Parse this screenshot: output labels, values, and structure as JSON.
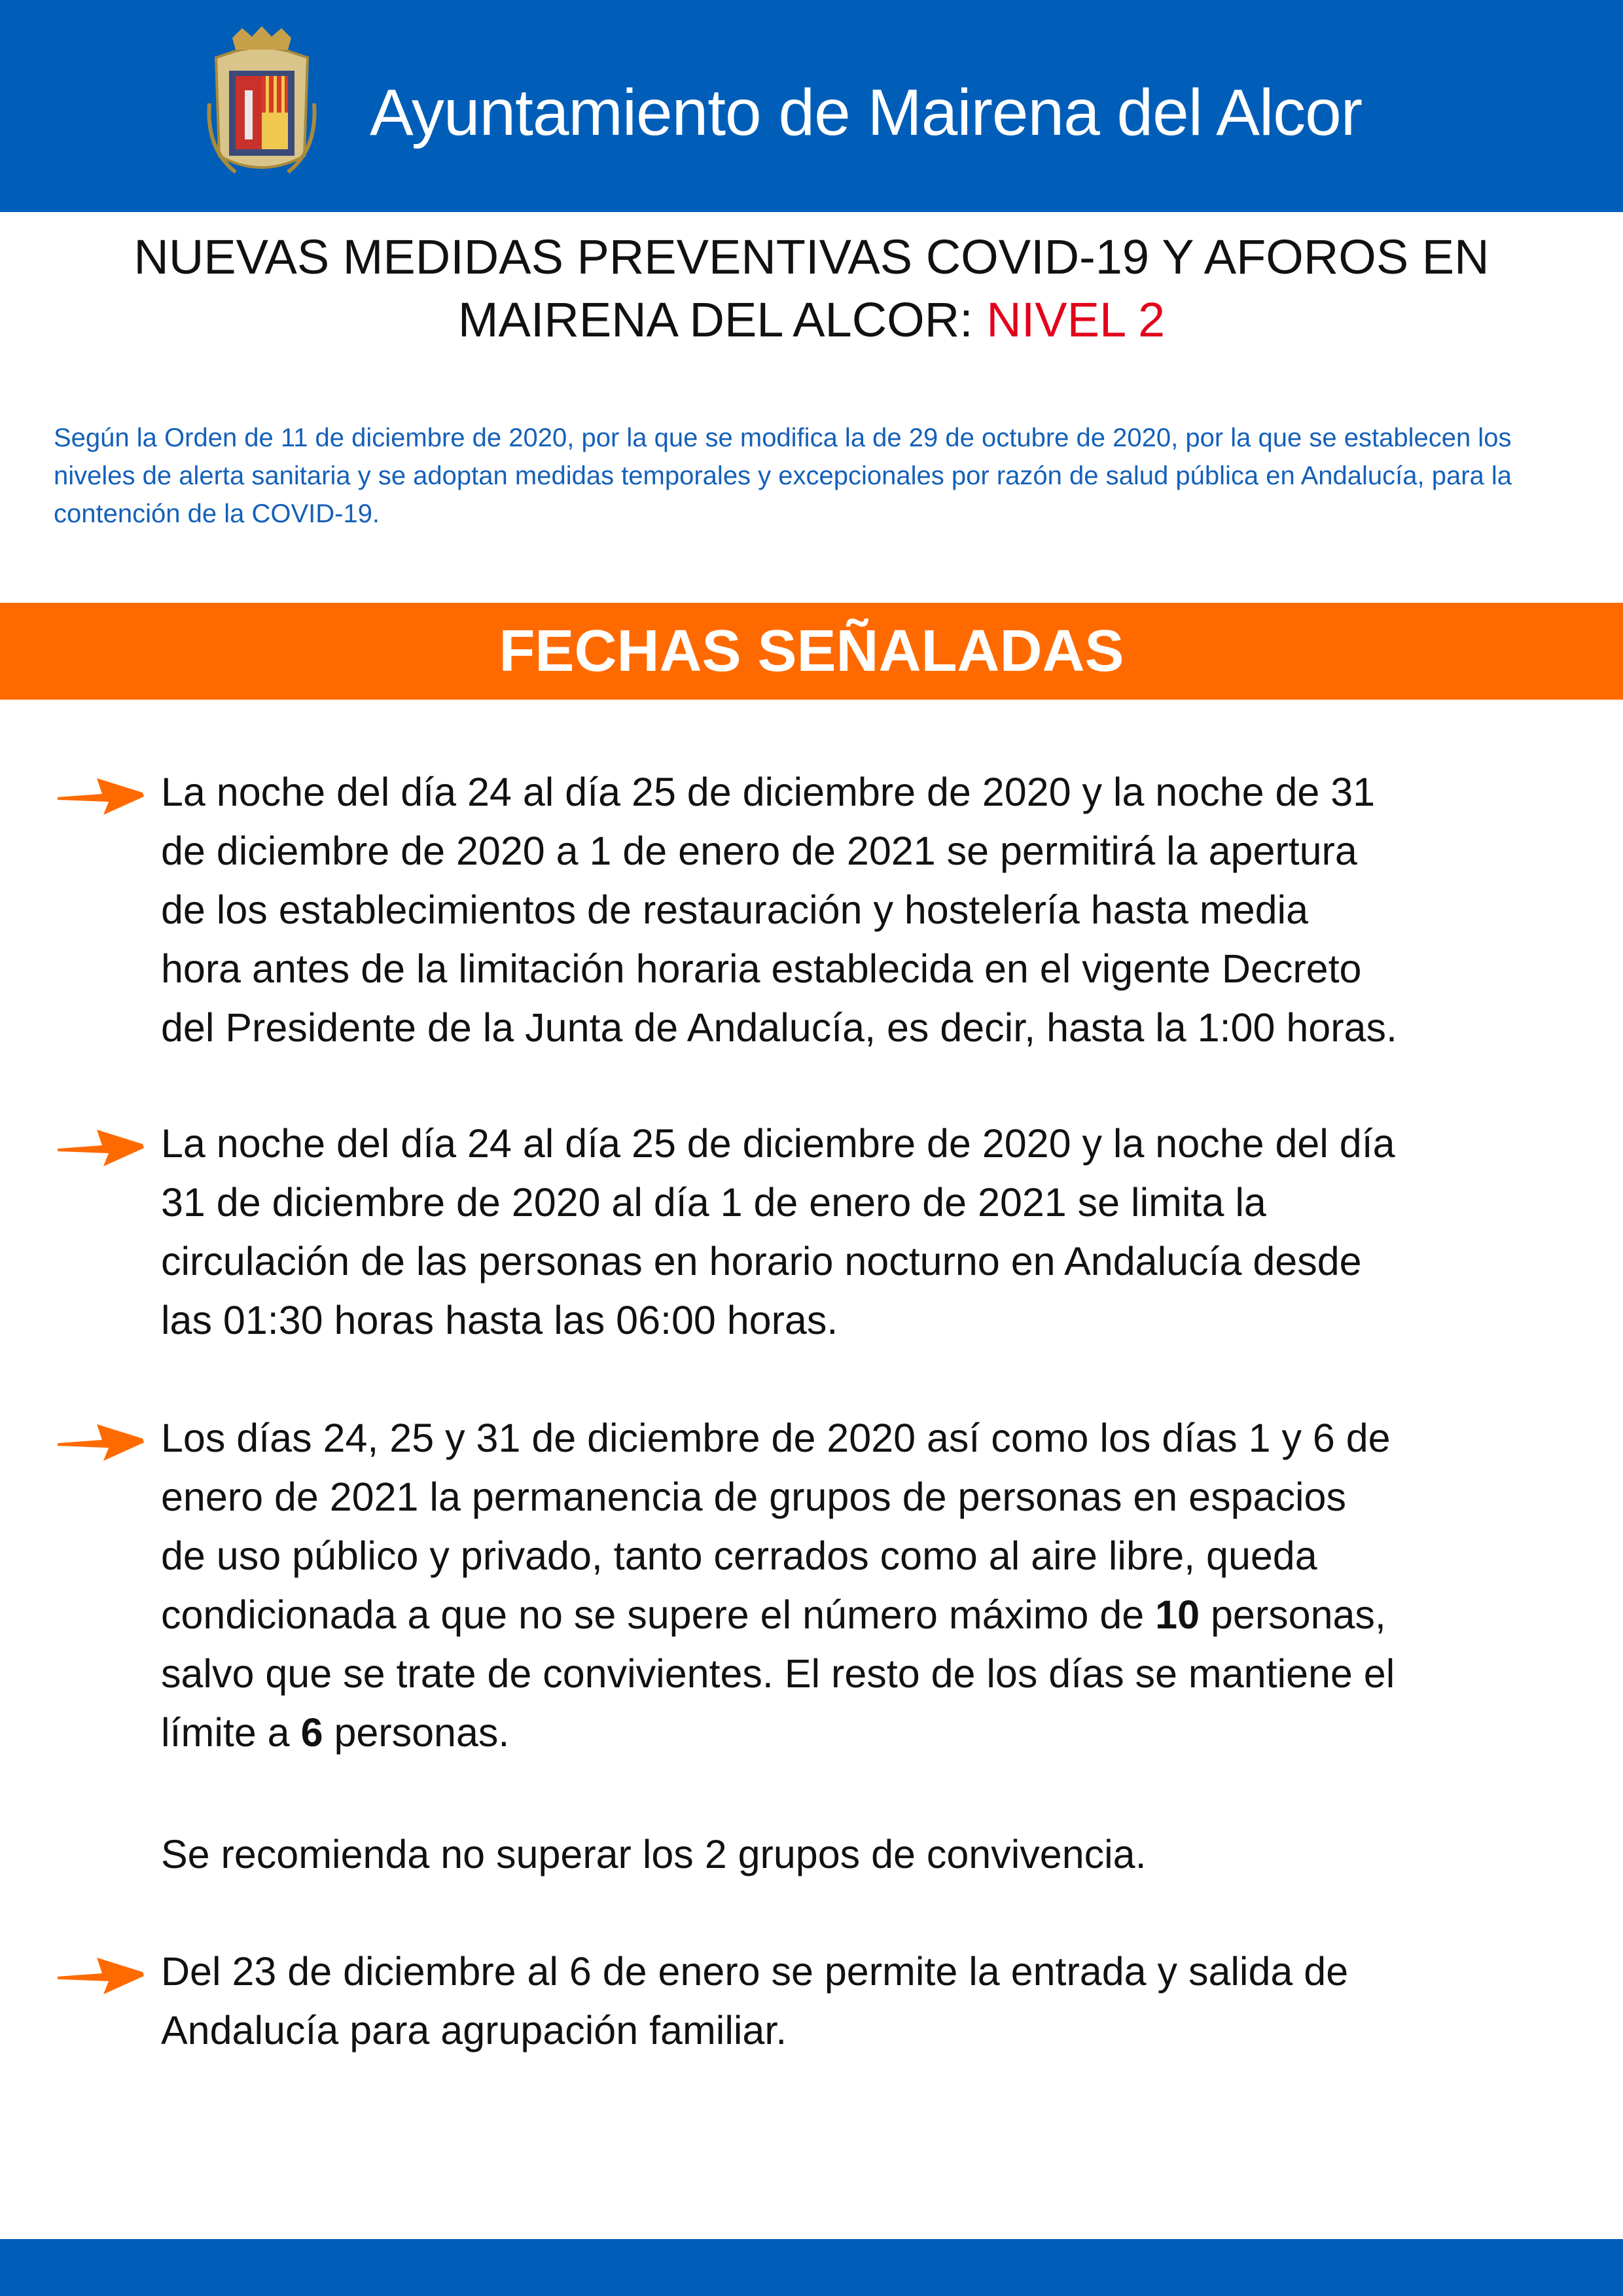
{
  "header": {
    "title": "Ayuntamiento de Mairena del Alcor",
    "logo": "coat-of-arms",
    "color": "#005eb8"
  },
  "title": {
    "line1": "NUEVAS MEDIDAS PREVENTIVAS COVID-19 Y AFOROS EN",
    "line2_prefix": "MAIRENA DEL ALCOR: ",
    "line2_highlight": "NIVEL 2",
    "highlight_color": "#e3001b"
  },
  "intro": "Según la Orden de 11 de diciembre de 2020, por la que se modifica la de 29 de octubre de 2020, por la que se establecen los niveles de alerta sanitaria y se adoptan medidas temporales y excepcionales por razón de salud pública en Andalucía, para la contención de la COVID-19.",
  "section": {
    "title": "FECHAS SEÑALADAS",
    "color": "#ff6a00"
  },
  "bullets": [
    {
      "arrow": true,
      "lines": [
        [
          {
            "text": "La noche del día 24 al día 25 de diciembre de 2020 y la noche de 31"
          }
        ],
        [
          {
            "text": "de diciembre de 2020 a 1 de enero de 2021 se permitirá la apertura"
          }
        ],
        [
          {
            "text": "de los establecimientos de restauración y hostelería hasta media"
          }
        ],
        [
          {
            "text": "hora antes de la limitación horaria establecida en el vigente Decreto"
          }
        ],
        [
          {
            "text": "del Presidente de la Junta de Andalucía, es decir, hasta la 1:00 horas."
          }
        ]
      ]
    },
    {
      "arrow": true,
      "lines": [
        [
          {
            "text": "La noche del día 24 al día 25 de diciembre de 2020 y la noche del día"
          }
        ],
        [
          {
            "text": "31 de diciembre de 2020 al día 1 de enero de 2021 se limita la"
          }
        ],
        [
          {
            "text": "circulación de las personas en horario nocturno en Andalucía desde"
          }
        ],
        [
          {
            "text": "las 01:30 horas hasta las 06:00 horas."
          }
        ]
      ]
    },
    {
      "arrow": true,
      "lines": [
        [
          {
            "text": "Los días 24, 25 y 31 de diciembre de 2020 así como los días 1 y 6 de"
          }
        ],
        [
          {
            "text": "enero de 2021 la permanencia de grupos de personas en espacios"
          }
        ],
        [
          {
            "text": "de uso público y privado, tanto cerrados como al aire libre, queda"
          }
        ],
        [
          {
            "text": "condicionada a que no se supere el número máximo de "
          },
          {
            "text": "10",
            "bold": true
          },
          {
            "text": " personas,"
          }
        ],
        [
          {
            "text": "salvo que se trate de convivientes. El resto de los días se mantiene el"
          }
        ],
        [
          {
            "text": "límite a "
          },
          {
            "text": "6",
            "bold": true
          },
          {
            "text": " personas."
          }
        ]
      ]
    },
    {
      "arrow": false,
      "lines": [
        [
          {
            "text": "Se recomienda no superar los 2 grupos de convivencia."
          }
        ]
      ]
    },
    {
      "arrow": true,
      "lines": [
        [
          {
            "text": "Del 23 de diciembre al 6 de enero se permite la entrada y salida de"
          }
        ],
        [
          {
            "text": "Andalucía para agrupación familiar."
          }
        ]
      ]
    }
  ]
}
